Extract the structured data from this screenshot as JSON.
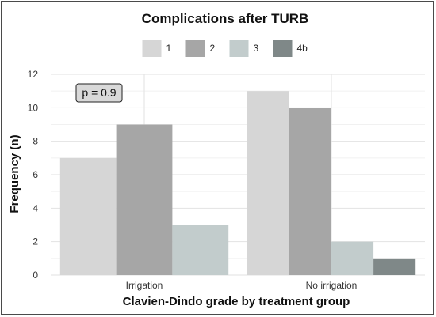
{
  "chart_data": {
    "type": "bar",
    "title": "Complications after TURB",
    "xlabel": "Clavien-Dindo grade by treatment group",
    "ylabel": "Frequency (n)",
    "categories": [
      "Irrigation",
      "No irrigation"
    ],
    "series": [
      {
        "name": "1",
        "values": [
          7,
          11
        ],
        "color": "#d6d6d6"
      },
      {
        "name": "2",
        "values": [
          9,
          10
        ],
        "color": "#a6a6a6"
      },
      {
        "name": "3",
        "values": [
          3,
          2
        ],
        "color": "#c2cccc"
      },
      {
        "name": "4b",
        "values": [
          0,
          1
        ],
        "color": "#7f8888"
      }
    ],
    "ylim": [
      0,
      12
    ],
    "yticks": [
      0,
      2,
      4,
      6,
      8,
      10,
      12
    ],
    "grid": true,
    "legend_position": "top",
    "annotation": "p = 0.9"
  }
}
